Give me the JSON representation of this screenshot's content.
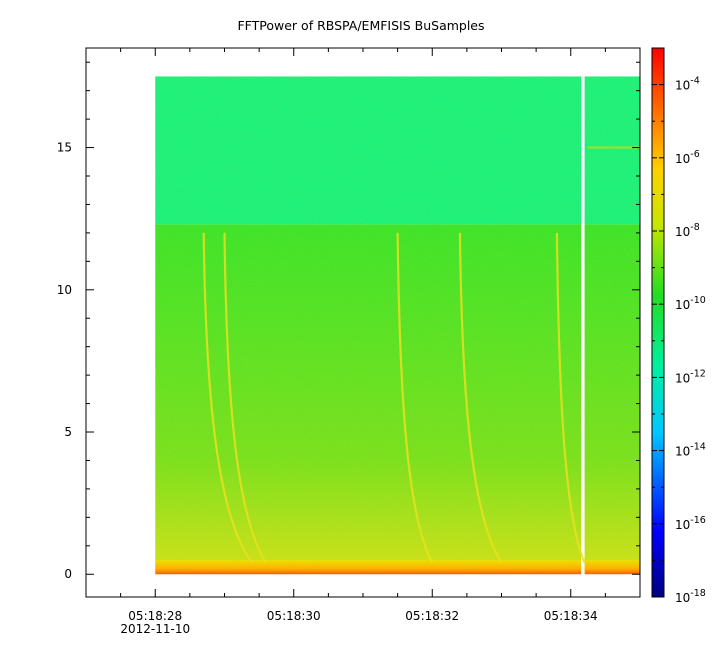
{
  "chart_data": {
    "type": "heatmap",
    "title": "FFTPower of RBSPA/EMFISIS  BuSamples",
    "xlabel": "",
    "ylabel": "",
    "x_axis": {
      "type": "time",
      "range": [
        "05:18:27.0",
        "05:18:35.0"
      ],
      "ticks": [
        {
          "value": "05:18:28",
          "label": "05:18:28",
          "sublabel": "2012-11-10"
        },
        {
          "value": "05:18:30",
          "label": "05:18:30",
          "sublabel": ""
        },
        {
          "value": "05:18:32",
          "label": "05:18:32",
          "sublabel": ""
        },
        {
          "value": "05:18:34",
          "label": "05:18:34",
          "sublabel": ""
        }
      ]
    },
    "y_axis": {
      "range": [
        -0.8,
        18.5
      ],
      "ticks": [
        0,
        5,
        10,
        15
      ],
      "labels": [
        "0",
        "5",
        "10",
        "15"
      ]
    },
    "colorbar": {
      "scale": "log",
      "range": [
        1e-18,
        0.001
      ],
      "colormap": "rainbow (blue-cyan-green-yellow-red)",
      "ticks": [
        {
          "value": 0.0001,
          "base": "10",
          "exp": "-4"
        },
        {
          "value": 1e-06,
          "base": "10",
          "exp": "-6"
        },
        {
          "value": 1e-08,
          "base": "10",
          "exp": "-8"
        },
        {
          "value": 1e-10,
          "base": "10",
          "exp": "-10"
        },
        {
          "value": 1e-12,
          "base": "10",
          "exp": "-12"
        },
        {
          "value": 1e-14,
          "base": "10",
          "exp": "-14"
        },
        {
          "value": 1e-16,
          "base": "10",
          "exp": "-16"
        },
        {
          "value": 1e-18,
          "base": "10",
          "exp": "-18"
        }
      ]
    },
    "data_extent": {
      "x_start": "05:18:28.0",
      "x_end": "05:18:35.0",
      "y_min": 0,
      "y_max": 17.5
    },
    "data_gap": {
      "x_start": "05:18:34.15",
      "x_end": "05:18:34.2"
    },
    "regions": [
      {
        "y_range": [
          12.3,
          17.5
        ],
        "power_approx": 1e-11,
        "color": "#1ef07a"
      },
      {
        "y_range": [
          0.5,
          12.3
        ],
        "power_approx": 1e-10,
        "color": "#3ee32a"
      },
      {
        "y_range": [
          0,
          0.5
        ],
        "power_approx": 1e-07,
        "color": "#f0d000"
      }
    ],
    "whistler_traces": [
      {
        "t_start": "05:18:28.7",
        "t_end": "05:18:29.4"
      },
      {
        "t_start": "05:18:29.0",
        "t_end": "05:18:29.6"
      },
      {
        "t_start": "05:18:31.5",
        "t_end": "05:18:32.0"
      },
      {
        "t_start": "05:18:32.4",
        "t_end": "05:18:33.0"
      },
      {
        "t_start": "05:18:33.8",
        "t_end": "05:18:34.2"
      }
    ],
    "narrowband_line": {
      "frequency": 15,
      "t_start": "05:18:34.2"
    },
    "grid": false,
    "legend": "none"
  }
}
